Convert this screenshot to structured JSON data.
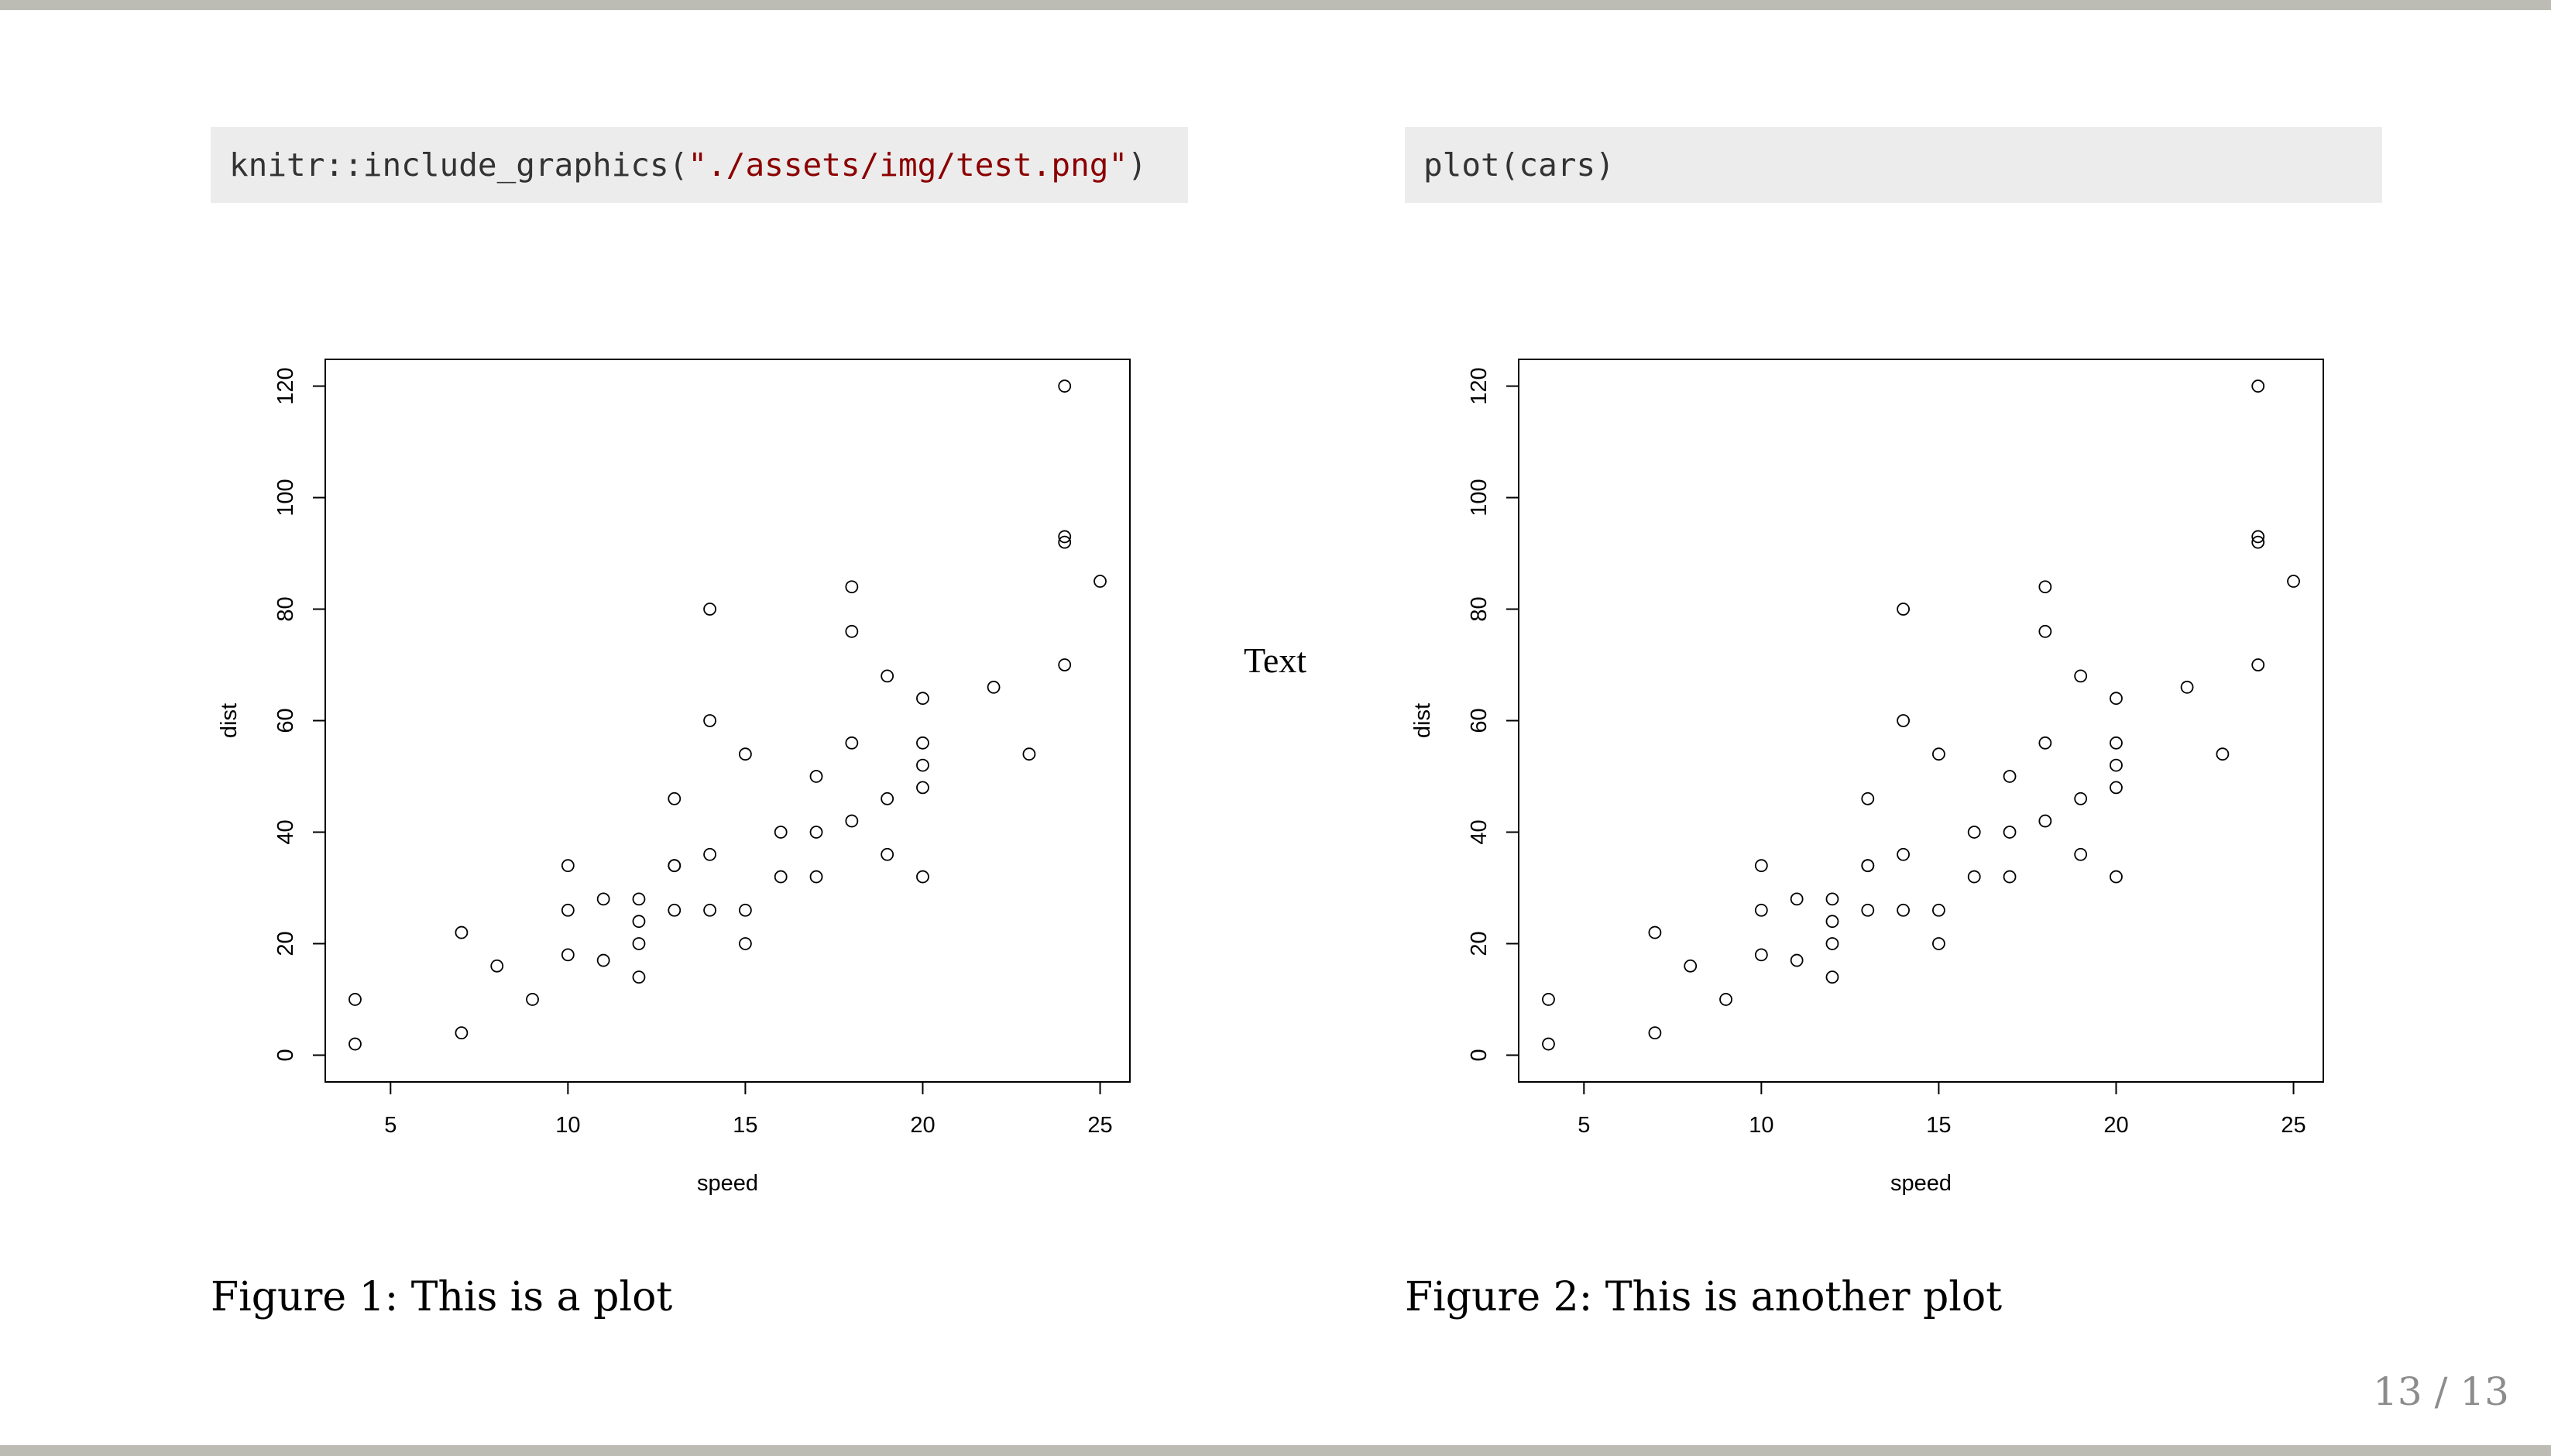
{
  "slide": {
    "left_code": {
      "prefix": "knitr::include_graphics(",
      "string": "\"./assets/img/test.png\"",
      "suffix": ")"
    },
    "right_code": "plot(cars)",
    "middle_text": "Text",
    "left_caption": "Figure 1: This is a plot",
    "right_caption": "Figure 2: This is another plot",
    "page_number": "13 / 13"
  },
  "chart_data": [
    {
      "type": "scatter",
      "title": "",
      "xlabel": "speed",
      "ylabel": "dist",
      "xlim": [
        4,
        25
      ],
      "ylim": [
        0,
        120
      ],
      "xticks": [
        5,
        10,
        15,
        20,
        25
      ],
      "yticks": [
        0,
        20,
        40,
        60,
        80,
        100,
        120
      ],
      "x": [
        4,
        4,
        7,
        7,
        8,
        9,
        10,
        10,
        10,
        11,
        11,
        12,
        12,
        12,
        12,
        13,
        13,
        13,
        13,
        14,
        14,
        14,
        14,
        15,
        15,
        15,
        16,
        16,
        17,
        17,
        17,
        18,
        18,
        18,
        18,
        19,
        19,
        19,
        20,
        20,
        20,
        20,
        20,
        22,
        23,
        24,
        24,
        24,
        24,
        25
      ],
      "y": [
        2,
        10,
        4,
        22,
        16,
        10,
        18,
        26,
        34,
        17,
        28,
        14,
        20,
        24,
        28,
        26,
        34,
        34,
        46,
        26,
        36,
        60,
        80,
        20,
        26,
        54,
        32,
        40,
        32,
        40,
        50,
        42,
        56,
        76,
        84,
        36,
        46,
        68,
        32,
        48,
        52,
        56,
        64,
        66,
        54,
        70,
        92,
        93,
        120,
        85
      ]
    },
    {
      "type": "scatter",
      "title": "",
      "xlabel": "speed",
      "ylabel": "dist",
      "xlim": [
        4,
        25
      ],
      "ylim": [
        0,
        120
      ],
      "xticks": [
        5,
        10,
        15,
        20,
        25
      ],
      "yticks": [
        0,
        20,
        40,
        60,
        80,
        100,
        120
      ],
      "x": [
        4,
        4,
        7,
        7,
        8,
        9,
        10,
        10,
        10,
        11,
        11,
        12,
        12,
        12,
        12,
        13,
        13,
        13,
        13,
        14,
        14,
        14,
        14,
        15,
        15,
        15,
        16,
        16,
        17,
        17,
        17,
        18,
        18,
        18,
        18,
        19,
        19,
        19,
        20,
        20,
        20,
        20,
        20,
        22,
        23,
        24,
        24,
        24,
        24,
        25
      ],
      "y": [
        2,
        10,
        4,
        22,
        16,
        10,
        18,
        26,
        34,
        17,
        28,
        14,
        20,
        24,
        28,
        26,
        34,
        34,
        46,
        26,
        36,
        60,
        80,
        20,
        26,
        54,
        32,
        40,
        32,
        40,
        50,
        42,
        56,
        76,
        84,
        36,
        46,
        68,
        32,
        48,
        52,
        56,
        64,
        66,
        54,
        70,
        92,
        93,
        120,
        85
      ]
    }
  ]
}
